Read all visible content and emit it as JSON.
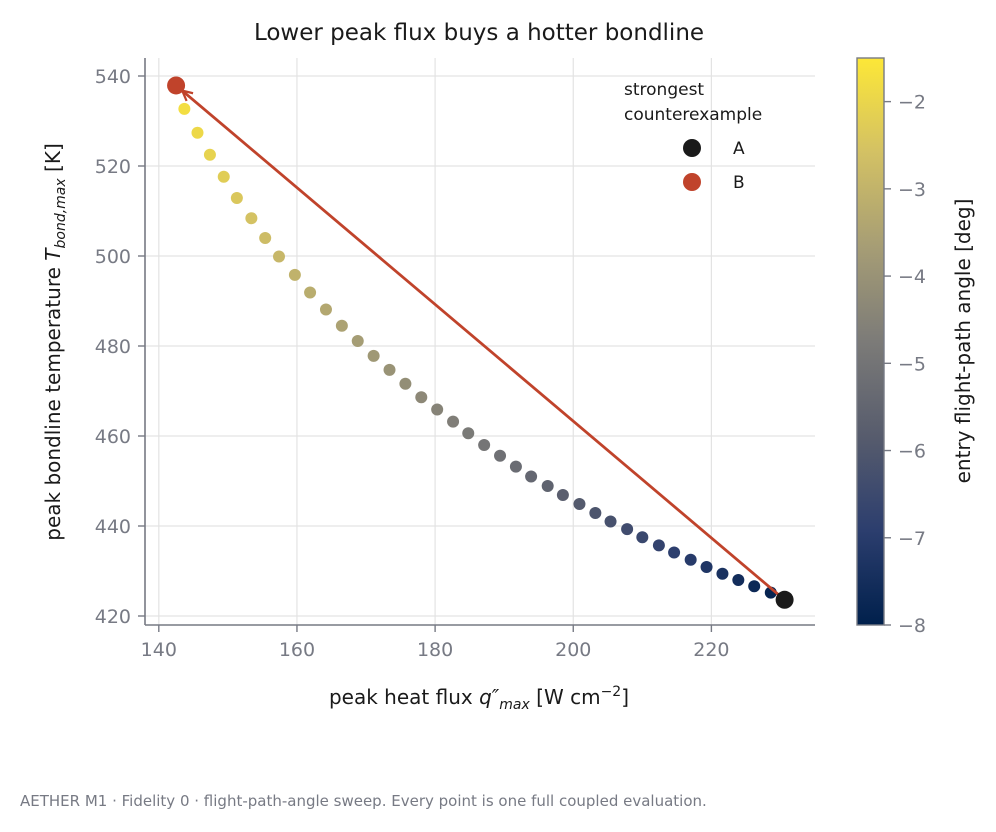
{
  "chart_data": {
    "type": "scatter",
    "title": "Lower peak flux buys a hotter bondline",
    "xlabel": "peak heat flux  q″max  [W cm⁻²]",
    "xlabel_parts": {
      "pre": "peak heat flux  ",
      "sym": "q″",
      "sub": "max",
      "post": "  [W cm",
      "sup": "−2",
      "end": "]"
    },
    "ylabel": "peak bondline temperature  Tbond,max  [K]",
    "ylabel_parts": {
      "pre": "peak bondline temperature  ",
      "sym": "T",
      "sub": "bond,max",
      "post": "  [K]"
    },
    "xlim": [
      138,
      235
    ],
    "ylim": [
      418,
      544
    ],
    "xticks": [
      140,
      160,
      180,
      200,
      220
    ],
    "yticks": [
      420,
      440,
      460,
      480,
      500,
      520,
      540
    ],
    "grid": true,
    "colorbar": {
      "label": "entry flight-path angle  [deg]",
      "range": [
        -8,
        -1.5
      ],
      "ticks": [
        -8,
        -7,
        -6,
        -5,
        -4,
        -3,
        -2
      ],
      "tick_labels": [
        "−8",
        "−7",
        "−6",
        "−5",
        "−4",
        "−3",
        "−2"
      ],
      "colormap": [
        "#00204c",
        "#2c3e6e",
        "#575c6d",
        "#7c7b78",
        "#a69d75",
        "#d3c164",
        "#fde737"
      ]
    },
    "sweep": {
      "x": [
        230.6,
        228.6,
        226.2,
        223.9,
        221.6,
        219.3,
        217.0,
        214.6,
        212.4,
        210.0,
        207.8,
        205.4,
        203.2,
        200.9,
        198.5,
        196.3,
        193.9,
        191.7,
        189.4,
        187.1,
        184.8,
        182.6,
        180.3,
        178.0,
        175.7,
        173.4,
        171.1,
        168.8,
        166.5,
        164.2,
        161.9,
        159.7,
        157.4,
        155.4,
        153.4,
        151.3,
        149.4,
        147.4,
        145.6,
        143.7,
        142.5
      ],
      "y": [
        423.6,
        425.2,
        426.6,
        428.0,
        429.4,
        430.9,
        432.5,
        434.1,
        435.7,
        437.5,
        439.3,
        441.0,
        442.9,
        444.9,
        446.9,
        448.9,
        451.0,
        453.2,
        455.6,
        458.0,
        460.6,
        463.2,
        465.9,
        468.6,
        471.6,
        474.7,
        477.8,
        481.1,
        484.5,
        488.1,
        491.9,
        495.8,
        499.9,
        504.0,
        508.4,
        512.9,
        517.6,
        522.5,
        527.4,
        532.7,
        537.9
      ],
      "angle": [
        -8.0,
        -7.84,
        -7.68,
        -7.52,
        -7.36,
        -7.2,
        -7.04,
        -6.88,
        -6.72,
        -6.56,
        -6.4,
        -6.24,
        -6.08,
        -5.92,
        -5.76,
        -5.6,
        -5.44,
        -5.28,
        -5.12,
        -4.96,
        -4.8,
        -4.64,
        -4.48,
        -4.32,
        -4.16,
        -4.0,
        -3.84,
        -3.68,
        -3.52,
        -3.36,
        -3.2,
        -3.04,
        -2.88,
        -2.72,
        -2.56,
        -2.4,
        -2.24,
        -2.08,
        -1.92,
        -1.76,
        -1.6
      ]
    },
    "highlight": [
      {
        "name": "A",
        "x": 230.6,
        "y": 423.6,
        "color": "#1a1a1a"
      },
      {
        "name": "B",
        "x": 142.5,
        "y": 537.9,
        "color": "#c0432b"
      }
    ],
    "arrow": {
      "from": [
        230.6,
        423.6
      ],
      "to": [
        142.5,
        537.9
      ],
      "color": "#c0432b"
    },
    "legend": {
      "title": "strongest\ncounterexample",
      "title_lines": [
        "strongest",
        "counterexample"
      ],
      "entries": [
        {
          "label": "A",
          "color": "#1a1a1a"
        },
        {
          "label": "B",
          "color": "#c0432b"
        }
      ],
      "placement": "top-right"
    }
  },
  "footnote": "AETHER M1 · Fidelity 0 · flight-path-angle sweep. Every point is one full coupled evaluation."
}
